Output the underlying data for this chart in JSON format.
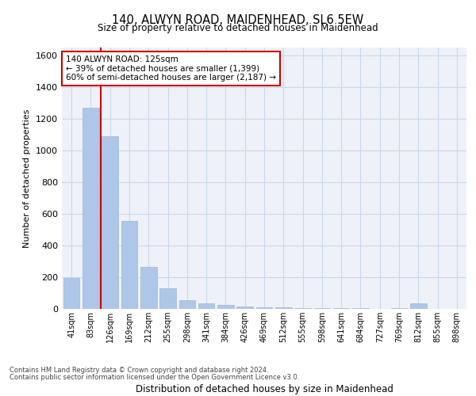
{
  "title": "140, ALWYN ROAD, MAIDENHEAD, SL6 5EW",
  "subtitle": "Size of property relative to detached houses in Maidenhead",
  "xlabel": "Distribution of detached houses by size in Maidenhead",
  "ylabel": "Number of detached properties",
  "categories": [
    "41sqm",
    "83sqm",
    "126sqm",
    "169sqm",
    "212sqm",
    "255sqm",
    "298sqm",
    "341sqm",
    "384sqm",
    "426sqm",
    "469sqm",
    "512sqm",
    "555sqm",
    "598sqm",
    "641sqm",
    "684sqm",
    "727sqm",
    "769sqm",
    "812sqm",
    "855sqm",
    "898sqm"
  ],
  "values": [
    195,
    1270,
    1090,
    555,
    265,
    132,
    55,
    35,
    25,
    15,
    10,
    8,
    6,
    5,
    4,
    3,
    2,
    3,
    35,
    2,
    1
  ],
  "bar_color": "#aec6e8",
  "bar_edge_color": "#9ab8d8",
  "grid_color": "#c8d8e8",
  "background_color": "#eef2f8",
  "vline_color": "#cc0000",
  "annotation_text": "140 ALWYN ROAD: 125sqm\n← 39% of detached houses are smaller (1,399)\n60% of semi-detached houses are larger (2,187) →",
  "annotation_box_color": "#ffffff",
  "annotation_box_edge": "#cc0000",
  "ylim": [
    0,
    1650
  ],
  "yticks": [
    0,
    200,
    400,
    600,
    800,
    1000,
    1200,
    1400,
    1600
  ],
  "footer_line1": "Contains HM Land Registry data © Crown copyright and database right 2024.",
  "footer_line2": "Contains public sector information licensed under the Open Government Licence v3.0."
}
